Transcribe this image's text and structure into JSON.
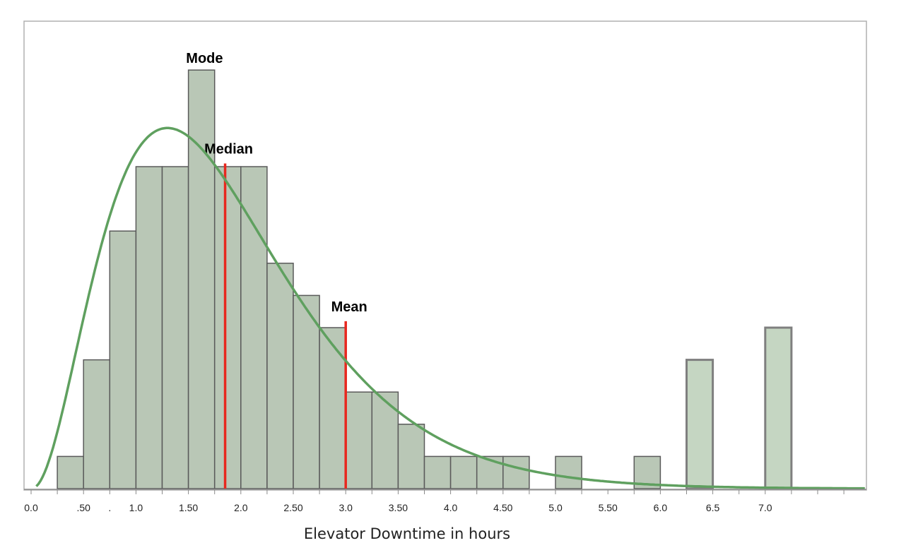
{
  "chart_data": {
    "type": "bar",
    "title": "",
    "xlabel": "Elevator Downtime in hours",
    "ylabel": "",
    "grid": false,
    "xlim": [
      0,
      8.0
    ],
    "ylim": [
      0,
      13
    ],
    "bars": [
      {
        "x0": 0.25,
        "x1": 0.5,
        "count": 1
      },
      {
        "x0": 0.5,
        "x1": 0.75,
        "count": 4
      },
      {
        "x0": 0.75,
        "x1": 1.0,
        "count": 8
      },
      {
        "x0": 1.0,
        "x1": 1.25,
        "count": 10
      },
      {
        "x0": 1.25,
        "x1": 1.5,
        "count": 10
      },
      {
        "x0": 1.5,
        "x1": 1.75,
        "count": 13
      },
      {
        "x0": 1.75,
        "x1": 2.0,
        "count": 10
      },
      {
        "x0": 2.0,
        "x1": 2.25,
        "count": 10
      },
      {
        "x0": 2.25,
        "x1": 2.5,
        "count": 7
      },
      {
        "x0": 2.5,
        "x1": 2.75,
        "count": 6
      },
      {
        "x0": 2.75,
        "x1": 3.0,
        "count": 5
      },
      {
        "x0": 3.0,
        "x1": 3.25,
        "count": 3
      },
      {
        "x0": 3.25,
        "x1": 3.5,
        "count": 3
      },
      {
        "x0": 3.5,
        "x1": 3.75,
        "count": 2
      },
      {
        "x0": 3.75,
        "x1": 4.0,
        "count": 1
      },
      {
        "x0": 4.0,
        "x1": 4.25,
        "count": 1
      },
      {
        "x0": 4.25,
        "x1": 4.5,
        "count": 1
      },
      {
        "x0": 4.5,
        "x1": 4.75,
        "count": 1
      },
      {
        "x0": 5.0,
        "x1": 5.25,
        "count": 1
      },
      {
        "x0": 5.75,
        "x1": 6.0,
        "count": 1
      },
      {
        "x0": 6.25,
        "x1": 6.5,
        "count": 4,
        "outlined": true
      },
      {
        "x0": 7.0,
        "x1": 7.25,
        "count": 5,
        "outlined": true
      }
    ],
    "curve": {
      "type": "right-skewed density",
      "peak_x": 1.3,
      "peak_count": 11.2
    },
    "markers": [
      {
        "name": "Mode",
        "x": 1.62
      },
      {
        "name": "Median",
        "x": 1.85,
        "line_top": 10.1
      },
      {
        "name": "Mean",
        "x": 3.0,
        "line_top": 5.2
      }
    ],
    "tick_labels": [
      {
        "x": 0.0,
        "label": "0.0"
      },
      {
        "x": 0.5,
        "label": ".50"
      },
      {
        "x": 0.75,
        "label": "."
      },
      {
        "x": 1.0,
        "label": "1.0"
      },
      {
        "x": 1.5,
        "label": "1.50"
      },
      {
        "x": 2.0,
        "label": "2.0"
      },
      {
        "x": 2.5,
        "label": "2.50"
      },
      {
        "x": 3.0,
        "label": "3.0"
      },
      {
        "x": 3.5,
        "label": "3.50"
      },
      {
        "x": 4.0,
        "label": "4.0"
      },
      {
        "x": 4.5,
        "label": "4.50"
      },
      {
        "x": 5.0,
        "label": "5.0"
      },
      {
        "x": 5.5,
        "label": "5.50"
      },
      {
        "x": 6.0,
        "label": "6.0"
      },
      {
        "x": 6.5,
        "label": "6.5"
      },
      {
        "x": 7.0,
        "label": "7.0"
      }
    ],
    "colors": {
      "bar_fill": "#b9c7b6",
      "bar_stroke": "#5a5a5a",
      "outlined_bar_fill": "#c5d6c2",
      "outlined_bar_stroke": "#7f7f7f",
      "curve": "#5fa05f",
      "marker_line": "#e8281f",
      "frame": "#b0b0b0"
    }
  }
}
